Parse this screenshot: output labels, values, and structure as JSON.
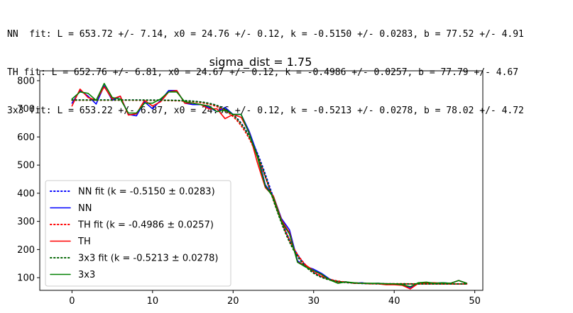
{
  "fit_lines": [
    "NN  fit: L = 653.72 +/- 7.14, x0 = 24.76 +/- 0.12, k = -0.5150 +/- 0.0283, b = 77.52 +/- 4.91",
    "TH fit: L = 652.76 +/- 6.81, x0 = 24.67 +/- 0.12, k = -0.4986 +/- 0.0257, b = 77.79 +/- 4.67",
    "3x3 fit: L = 653.22 +/- 6.87, x0 = 24.66 +/- 0.12, k = -0.5213 +/- 0.0278, b = 78.02 +/- 4.72"
  ],
  "chart_data": {
    "type": "line",
    "title": "sigma_dist = 1.75",
    "xlabel": "",
    "ylabel": "",
    "xlim": [
      -4,
      51
    ],
    "ylim": [
      55,
      835
    ],
    "x_ticks": [
      0,
      10,
      20,
      30,
      40,
      50
    ],
    "y_ticks": [
      100,
      200,
      300,
      400,
      500,
      600,
      700,
      800
    ],
    "grid": false,
    "legend_position": "lower-left",
    "x": [
      0,
      1,
      2,
      3,
      4,
      5,
      6,
      7,
      8,
      9,
      10,
      11,
      12,
      13,
      14,
      15,
      16,
      17,
      18,
      19,
      20,
      21,
      22,
      23,
      24,
      25,
      26,
      27,
      28,
      29,
      30,
      31,
      32,
      33,
      34,
      35,
      36,
      37,
      38,
      39,
      40,
      41,
      42,
      43,
      44,
      45,
      46,
      47,
      48,
      49
    ],
    "series": [
      {
        "name": "NN",
        "color": "#0000ff",
        "style": "solid",
        "values": [
          720,
          765,
          745,
          717,
          782,
          730,
          745,
          680,
          675,
          725,
          700,
          730,
          765,
          765,
          720,
          715,
          715,
          705,
          690,
          705,
          680,
          680,
          620,
          540,
          430,
          390,
          310,
          270,
          160,
          140,
          130,
          115,
          95,
          85,
          85,
          80,
          82,
          78,
          80,
          78,
          76,
          75,
          65,
          80,
          82,
          80,
          82,
          80,
          90,
          80
        ]
      },
      {
        "name": "TH",
        "color": "#ff0000",
        "style": "solid",
        "values": [
          710,
          770,
          740,
          730,
          778,
          735,
          745,
          678,
          682,
          730,
          710,
          725,
          760,
          765,
          720,
          720,
          715,
          700,
          700,
          665,
          680,
          670,
          615,
          510,
          420,
          390,
          305,
          260,
          155,
          145,
          125,
          110,
          92,
          85,
          85,
          80,
          80,
          78,
          78,
          75,
          75,
          73,
          60,
          80,
          82,
          82,
          80,
          80,
          90,
          80
        ]
      },
      {
        "name": "3x3",
        "color": "#008000",
        "style": "solid",
        "values": [
          735,
          760,
          755,
          730,
          790,
          740,
          735,
          685,
          685,
          720,
          720,
          735,
          760,
          760,
          725,
          720,
          715,
          710,
          690,
          695,
          680,
          680,
          612,
          530,
          425,
          385,
          300,
          255,
          155,
          138,
          125,
          112,
          92,
          80,
          85,
          82,
          80,
          80,
          80,
          78,
          78,
          75,
          68,
          82,
          84,
          80,
          82,
          80,
          90,
          80
        ]
      },
      {
        "name": "NN fit (k = -0.5150 ± 0.0283)",
        "color": "#0000ff",
        "style": "dotted",
        "fit": {
          "L": 653.72,
          "x0": 24.76,
          "k": -0.515,
          "b": 77.52
        }
      },
      {
        "name": "TH fit (k = -0.4986 ± 0.0257)",
        "color": "#ff0000",
        "style": "dotted",
        "fit": {
          "L": 652.76,
          "x0": 24.67,
          "k": -0.4986,
          "b": 77.79
        }
      },
      {
        "name": "3x3 fit (k = -0.5213 ± 0.0278)",
        "color": "#006400",
        "style": "dotted",
        "fit": {
          "L": 653.22,
          "x0": 24.66,
          "k": -0.5213,
          "b": 78.02
        }
      }
    ],
    "legend": [
      {
        "label": "NN fit (k = -0.5150 ± 0.0283)",
        "color": "#0000ff",
        "style": "dotted"
      },
      {
        "label": "NN",
        "color": "#0000ff",
        "style": "solid"
      },
      {
        "label": "TH fit (k = -0.4986 ± 0.0257)",
        "color": "#ff0000",
        "style": "dotted"
      },
      {
        "label": "TH",
        "color": "#ff0000",
        "style": "solid"
      },
      {
        "label": "3x3 fit (k = -0.5213 ± 0.0278)",
        "color": "#006400",
        "style": "dotted"
      },
      {
        "label": "3x3",
        "color": "#008000",
        "style": "solid"
      }
    ]
  }
}
